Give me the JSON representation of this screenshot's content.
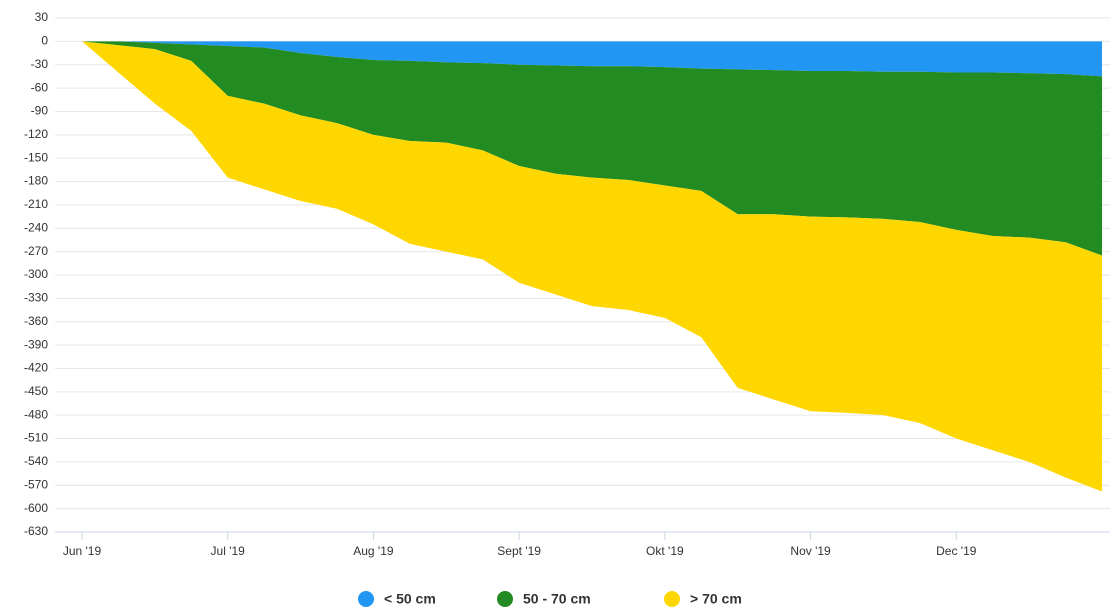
{
  "chart_data": {
    "type": "area",
    "stacked": true,
    "categories": [
      "Jun '19",
      null,
      null,
      null,
      "Jul '19",
      null,
      null,
      null,
      "Aug '19",
      null,
      null,
      null,
      "Sept '19",
      null,
      null,
      null,
      "Okt '19",
      null,
      null,
      null,
      "Nov '19",
      null,
      null,
      null,
      "Dec '19",
      null,
      null,
      null,
      null
    ],
    "series": [
      {
        "name": "< 50 cm",
        "color": "#2196f3",
        "values": [
          0,
          0,
          -2,
          -4,
          -6,
          -8,
          -15,
          -20,
          -24,
          -25,
          -27,
          -28,
          -30,
          -31,
          -32,
          -32,
          -33,
          -35,
          -36,
          -37,
          -38,
          -38,
          -39,
          -39,
          -40,
          -40,
          -41,
          -42,
          -45
        ]
      },
      {
        "name": "50 - 70 cm",
        "color": "#228b22",
        "values": [
          0,
          -5,
          -8,
          -21,
          -64,
          -72,
          -80,
          -85,
          -96,
          -103,
          -103,
          -112,
          -130,
          -139,
          -143,
          -146,
          -152,
          -157,
          -186,
          -185,
          -187,
          -188,
          -189,
          -193,
          -202,
          -210,
          -211,
          -216,
          -230
        ]
      },
      {
        "name": "> 70 cm",
        "color": "#ffd700",
        "values": [
          0,
          -35,
          -70,
          -90,
          -105,
          -110,
          -110,
          -110,
          -115,
          -132,
          -140,
          -140,
          -150,
          -155,
          -165,
          -167,
          -170,
          -188,
          -223,
          -238,
          -250,
          -251,
          -252,
          -258,
          -268,
          -275,
          -288,
          -302,
          -303
        ]
      }
    ],
    "ylim": [
      -630,
      30
    ],
    "yticks": [
      30,
      0,
      -30,
      -60,
      -90,
      -120,
      -150,
      -180,
      -210,
      -240,
      -270,
      -300,
      -330,
      -360,
      -390,
      -420,
      -450,
      -480,
      -510,
      -540,
      -570,
      -600,
      -630
    ],
    "grid": true,
    "legend": "bottom"
  }
}
